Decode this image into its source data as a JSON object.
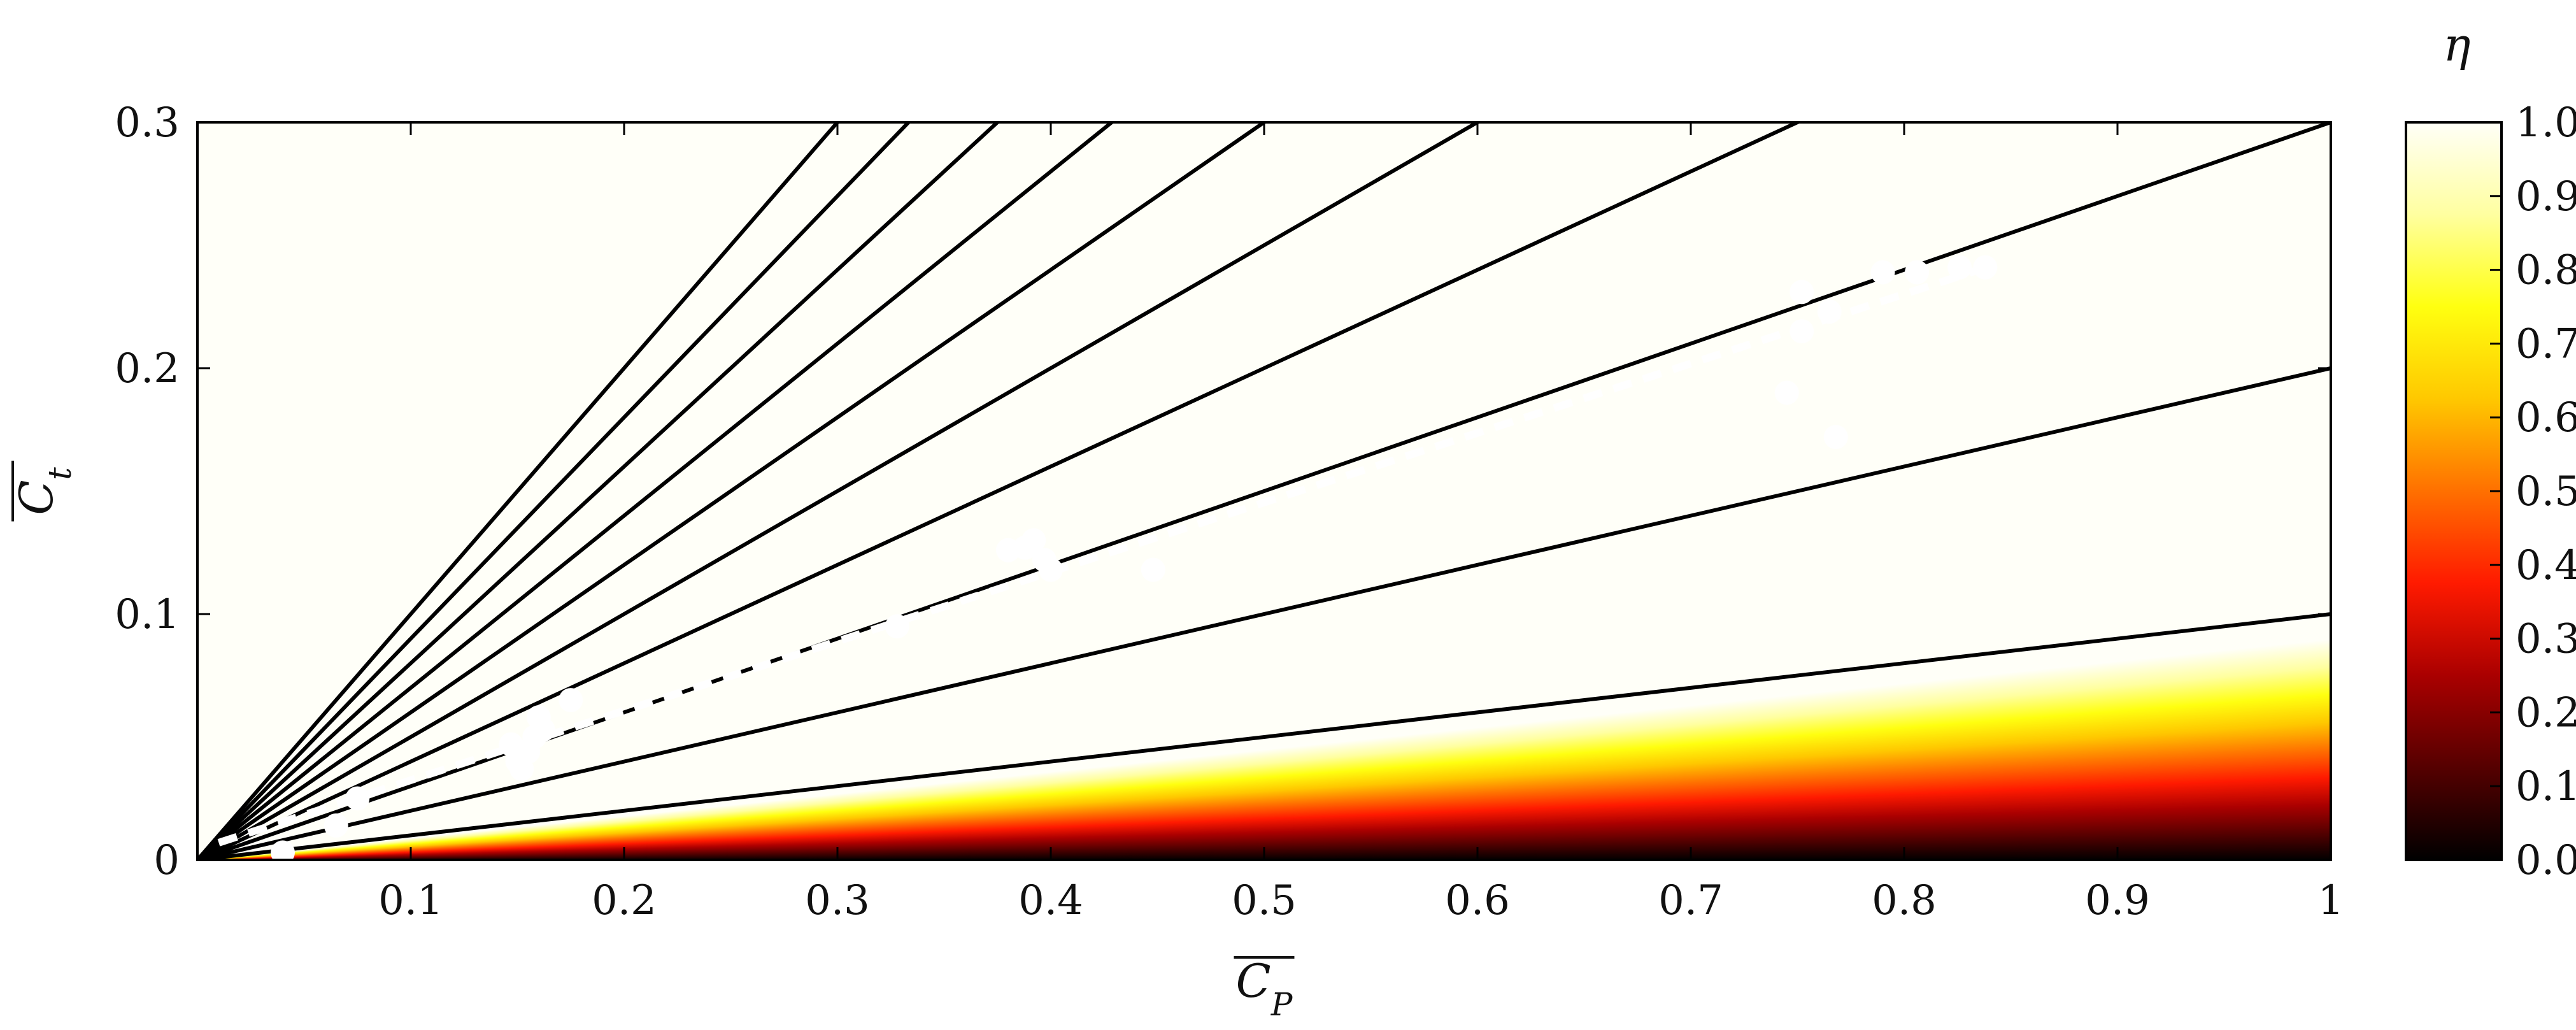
{
  "chart_data": {
    "type": "heatmap",
    "xlabel": "C_P",
    "ylabel": "C_t",
    "xlim": [
      0.0,
      1.0
    ],
    "ylim": [
      0.0,
      0.3
    ],
    "x_ticks": [
      0.1,
      0.2,
      0.3,
      0.4,
      0.5,
      0.6,
      0.7,
      0.8,
      0.9,
      1.0
    ],
    "x_tick_labels": [
      "0.1",
      "0.2",
      "0.3",
      "0.4",
      "0.5",
      "0.6",
      "0.7",
      "0.8",
      "0.9",
      "1"
    ],
    "y_ticks": [
      0.0,
      0.1,
      0.2,
      0.3
    ],
    "y_tick_labels": [
      "0",
      "0.1",
      "0.2",
      "0.3"
    ],
    "colorbar": {
      "label": "η",
      "range": [
        0.0,
        1.0
      ],
      "ticks": [
        0.0,
        0.1,
        0.2,
        0.3,
        0.4,
        0.5,
        0.6,
        0.7,
        0.8,
        0.9,
        1.0
      ],
      "tick_labels": [
        "0.0",
        "0.1",
        "0.2",
        "0.3",
        "0.4",
        "0.5",
        "0.6",
        "0.7",
        "0.8",
        "0.9",
        "1.0"
      ],
      "colormap": [
        "#000000",
        "#550000",
        "#aa0000",
        "#ff1a00",
        "#ff7000",
        "#ffc800",
        "#ffff10",
        "#ffffa0",
        "#fffff8"
      ]
    },
    "contour_levels": [
      0.1,
      0.2,
      0.3,
      0.4,
      0.5,
      0.6,
      0.7,
      0.8,
      0.9,
      1.0
    ],
    "contour_color": "#000000",
    "points": {
      "x": [
        0.04,
        0.065,
        0.075,
        0.147,
        0.15,
        0.152,
        0.155,
        0.158,
        0.16,
        0.162,
        0.175,
        0.328,
        0.38,
        0.388,
        0.392,
        0.397,
        0.4,
        0.448,
        0.745,
        0.752,
        0.752,
        0.765,
        0.768,
        0.79,
        0.806,
        0.826,
        0.838
      ],
      "y": [
        0.003,
        0.014,
        0.025,
        0.047,
        0.04,
        0.037,
        0.044,
        0.05,
        0.058,
        0.053,
        0.065,
        0.095,
        0.126,
        0.127,
        0.13,
        0.122,
        0.118,
        0.118,
        0.19,
        0.231,
        0.215,
        0.223,
        0.172,
        0.239,
        0.239,
        0.241,
        0.241
      ],
      "color": "#ffffff"
    },
    "fit_line": {
      "x": [
        0.01,
        0.835
      ],
      "y": [
        0.007,
        0.24
      ],
      "color": "#ffffff",
      "style": "dashed"
    }
  }
}
